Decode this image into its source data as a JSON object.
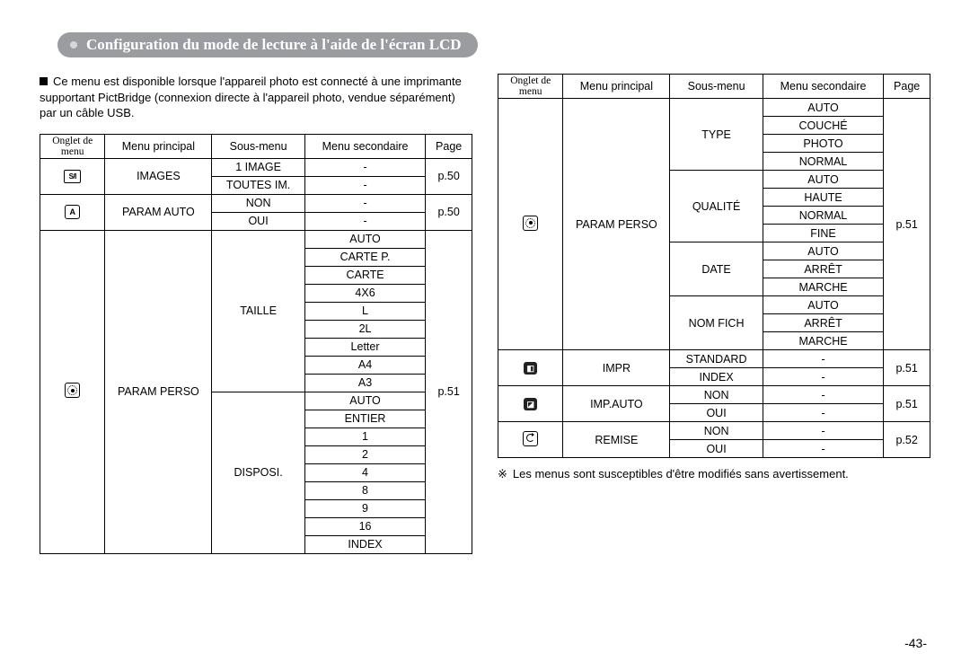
{
  "title": "Configuration du mode de lecture à l'aide de l'écran LCD",
  "intro": "Ce menu est disponible lorsque l'appareil photo est connecté à une imprimante supportant PictBridge (connexion directe à l'appareil photo, vendue séparément) par un câble USB.",
  "note_prefix": "※",
  "note": "Les menus sont susceptibles d'être modifiés sans avertissement.",
  "page_number": "-43-",
  "headers": {
    "onglet": "Onglet de menu",
    "principal": "Menu principal",
    "sous": "Sous-menu",
    "secondaire": "Menu secondaire",
    "page": "Page"
  },
  "pages": {
    "p50": "p.50",
    "p51": "p.51",
    "p52": "p.52"
  },
  "left": {
    "images": {
      "label": "IMAGES",
      "r1": "1 IMAGE",
      "r2": "TOUTES IM."
    },
    "paramauto": {
      "label": "PARAM AUTO",
      "r1": "NON",
      "r2": "OUI"
    },
    "paramperso": {
      "label": "PARAM PERSO",
      "taille": {
        "label": "TAILLE",
        "v": [
          "AUTO",
          "CARTE P.",
          "CARTE",
          "4X6",
          "L",
          "2L",
          "Letter",
          "A4",
          "A3"
        ]
      },
      "disposi": {
        "label": "DISPOSI.",
        "v": [
          "AUTO",
          "ENTIER",
          "1",
          "2",
          "4",
          "8",
          "9",
          "16",
          "INDEX"
        ]
      }
    }
  },
  "right": {
    "paramperso": {
      "label": "PARAM PERSO",
      "type": {
        "label": "TYPE",
        "v": [
          "AUTO",
          "COUCHÉ",
          "PHOTO",
          "NORMAL"
        ]
      },
      "qualite": {
        "label": "QUALITÉ",
        "v": [
          "AUTO",
          "HAUTE",
          "NORMAL",
          "FINE"
        ]
      },
      "date": {
        "label": "DATE",
        "v": [
          "AUTO",
          "ARRÊT",
          "MARCHE"
        ]
      },
      "nomfich": {
        "label": "NOM FICH",
        "v": [
          "AUTO",
          "ARRÊT",
          "MARCHE"
        ]
      }
    },
    "impr": {
      "label": "IMPR",
      "r1": "STANDARD",
      "r2": "INDEX"
    },
    "impauto": {
      "label": "IMP.AUTO",
      "r1": "NON",
      "r2": "OUI"
    },
    "remise": {
      "label": "REMISE",
      "r1": "NON",
      "r2": "OUI"
    }
  },
  "dash": "-"
}
